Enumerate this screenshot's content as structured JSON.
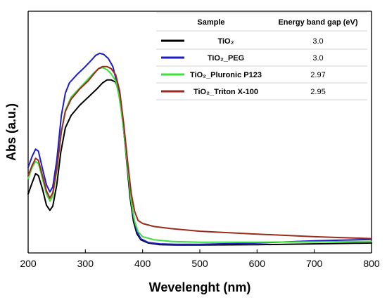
{
  "chart_data": {
    "type": "line",
    "xlabel": "Wevelenght (nm)",
    "ylabel": "Abs (a.u.)",
    "xlim": [
      200,
      800
    ],
    "ylim": [
      0,
      1
    ],
    "x_ticks": [
      "200",
      "300",
      "400",
      "500",
      "600",
      "700",
      "800"
    ],
    "y_ticks_shown": false,
    "legend": {
      "placement": "top-right",
      "header_sample": "Sample",
      "header_gap": "Energy band gap (eV)",
      "rows": [
        {
          "name": "TiO₂",
          "gap": "3.0",
          "color": "#000000"
        },
        {
          "name": "TiO₂_PEG",
          "gap": "3.0",
          "color": "#1c1cc8"
        },
        {
          "name": "TiO₂_Pluronic P123",
          "gap": "2.97",
          "color": "#3ee03e"
        },
        {
          "name": "TiO₂_Triton X-100",
          "gap": "2.95",
          "color": "#9a2a1c"
        }
      ]
    },
    "series": [
      {
        "name": "TiO₂",
        "color": "#000000",
        "points": [
          [
            200,
            0.255
          ],
          [
            207,
            0.31
          ],
          [
            213,
            0.355
          ],
          [
            218,
            0.345
          ],
          [
            225,
            0.28
          ],
          [
            232,
            0.2
          ],
          [
            238,
            0.175
          ],
          [
            243,
            0.195
          ],
          [
            250,
            0.3
          ],
          [
            257,
            0.46
          ],
          [
            265,
            0.58
          ],
          [
            275,
            0.64
          ],
          [
            290,
            0.69
          ],
          [
            305,
            0.73
          ],
          [
            320,
            0.77
          ],
          [
            330,
            0.8
          ],
          [
            338,
            0.815
          ],
          [
            345,
            0.815
          ],
          [
            352,
            0.805
          ],
          [
            358,
            0.77
          ],
          [
            365,
            0.63
          ],
          [
            372,
            0.42
          ],
          [
            378,
            0.24
          ],
          [
            384,
            0.12
          ],
          [
            390,
            0.06
          ],
          [
            397,
            0.03
          ],
          [
            410,
            0.014
          ],
          [
            430,
            0.006
          ],
          [
            460,
            0.004
          ],
          [
            500,
            0.004
          ],
          [
            600,
            0.006
          ],
          [
            700,
            0.01
          ],
          [
            800,
            0.014
          ]
        ]
      },
      {
        "name": "TiO₂_PEG",
        "color": "#1c1cc8",
        "points": [
          [
            200,
            0.385
          ],
          [
            207,
            0.44
          ],
          [
            213,
            0.475
          ],
          [
            218,
            0.465
          ],
          [
            225,
            0.38
          ],
          [
            232,
            0.3
          ],
          [
            238,
            0.265
          ],
          [
            243,
            0.29
          ],
          [
            250,
            0.42
          ],
          [
            258,
            0.64
          ],
          [
            265,
            0.75
          ],
          [
            272,
            0.8
          ],
          [
            285,
            0.84
          ],
          [
            298,
            0.875
          ],
          [
            310,
            0.91
          ],
          [
            318,
            0.935
          ],
          [
            325,
            0.945
          ],
          [
            332,
            0.94
          ],
          [
            340,
            0.92
          ],
          [
            348,
            0.88
          ],
          [
            356,
            0.79
          ],
          [
            364,
            0.64
          ],
          [
            372,
            0.44
          ],
          [
            378,
            0.27
          ],
          [
            384,
            0.14
          ],
          [
            390,
            0.07
          ],
          [
            397,
            0.035
          ],
          [
            410,
            0.017
          ],
          [
            430,
            0.01
          ],
          [
            460,
            0.008
          ],
          [
            500,
            0.008
          ],
          [
            600,
            0.014
          ],
          [
            700,
            0.025
          ],
          [
            800,
            0.032
          ]
        ]
      },
      {
        "name": "TiO₂_Pluronic P123",
        "color": "#3ee03e",
        "points": [
          [
            200,
            0.33
          ],
          [
            207,
            0.385
          ],
          [
            213,
            0.415
          ],
          [
            218,
            0.405
          ],
          [
            225,
            0.33
          ],
          [
            232,
            0.255
          ],
          [
            238,
            0.22
          ],
          [
            243,
            0.245
          ],
          [
            250,
            0.37
          ],
          [
            258,
            0.56
          ],
          [
            265,
            0.665
          ],
          [
            275,
            0.73
          ],
          [
            290,
            0.775
          ],
          [
            305,
            0.82
          ],
          [
            315,
            0.85
          ],
          [
            323,
            0.87
          ],
          [
            330,
            0.875
          ],
          [
            338,
            0.865
          ],
          [
            345,
            0.845
          ],
          [
            353,
            0.81
          ],
          [
            360,
            0.72
          ],
          [
            367,
            0.57
          ],
          [
            374,
            0.38
          ],
          [
            380,
            0.22
          ],
          [
            386,
            0.12
          ],
          [
            392,
            0.07
          ],
          [
            400,
            0.045
          ],
          [
            420,
            0.03
          ],
          [
            450,
            0.022
          ],
          [
            500,
            0.018
          ],
          [
            600,
            0.018
          ],
          [
            700,
            0.02
          ],
          [
            800,
            0.022
          ]
        ]
      },
      {
        "name": "TiO₂_Triton X-100",
        "color": "#9a2a1c",
        "points": [
          [
            200,
            0.345
          ],
          [
            207,
            0.395
          ],
          [
            213,
            0.43
          ],
          [
            218,
            0.42
          ],
          [
            225,
            0.345
          ],
          [
            232,
            0.27
          ],
          [
            238,
            0.235
          ],
          [
            243,
            0.26
          ],
          [
            250,
            0.38
          ],
          [
            258,
            0.56
          ],
          [
            265,
            0.66
          ],
          [
            275,
            0.72
          ],
          [
            290,
            0.77
          ],
          [
            305,
            0.81
          ],
          [
            315,
            0.845
          ],
          [
            323,
            0.87
          ],
          [
            330,
            0.88
          ],
          [
            338,
            0.88
          ],
          [
            345,
            0.87
          ],
          [
            353,
            0.84
          ],
          [
            360,
            0.76
          ],
          [
            367,
            0.6
          ],
          [
            374,
            0.41
          ],
          [
            380,
            0.26
          ],
          [
            386,
            0.17
          ],
          [
            392,
            0.125
          ],
          [
            400,
            0.11
          ],
          [
            420,
            0.095
          ],
          [
            450,
            0.085
          ],
          [
            500,
            0.072
          ],
          [
            600,
            0.058
          ],
          [
            700,
            0.045
          ],
          [
            800,
            0.036
          ]
        ]
      }
    ]
  }
}
